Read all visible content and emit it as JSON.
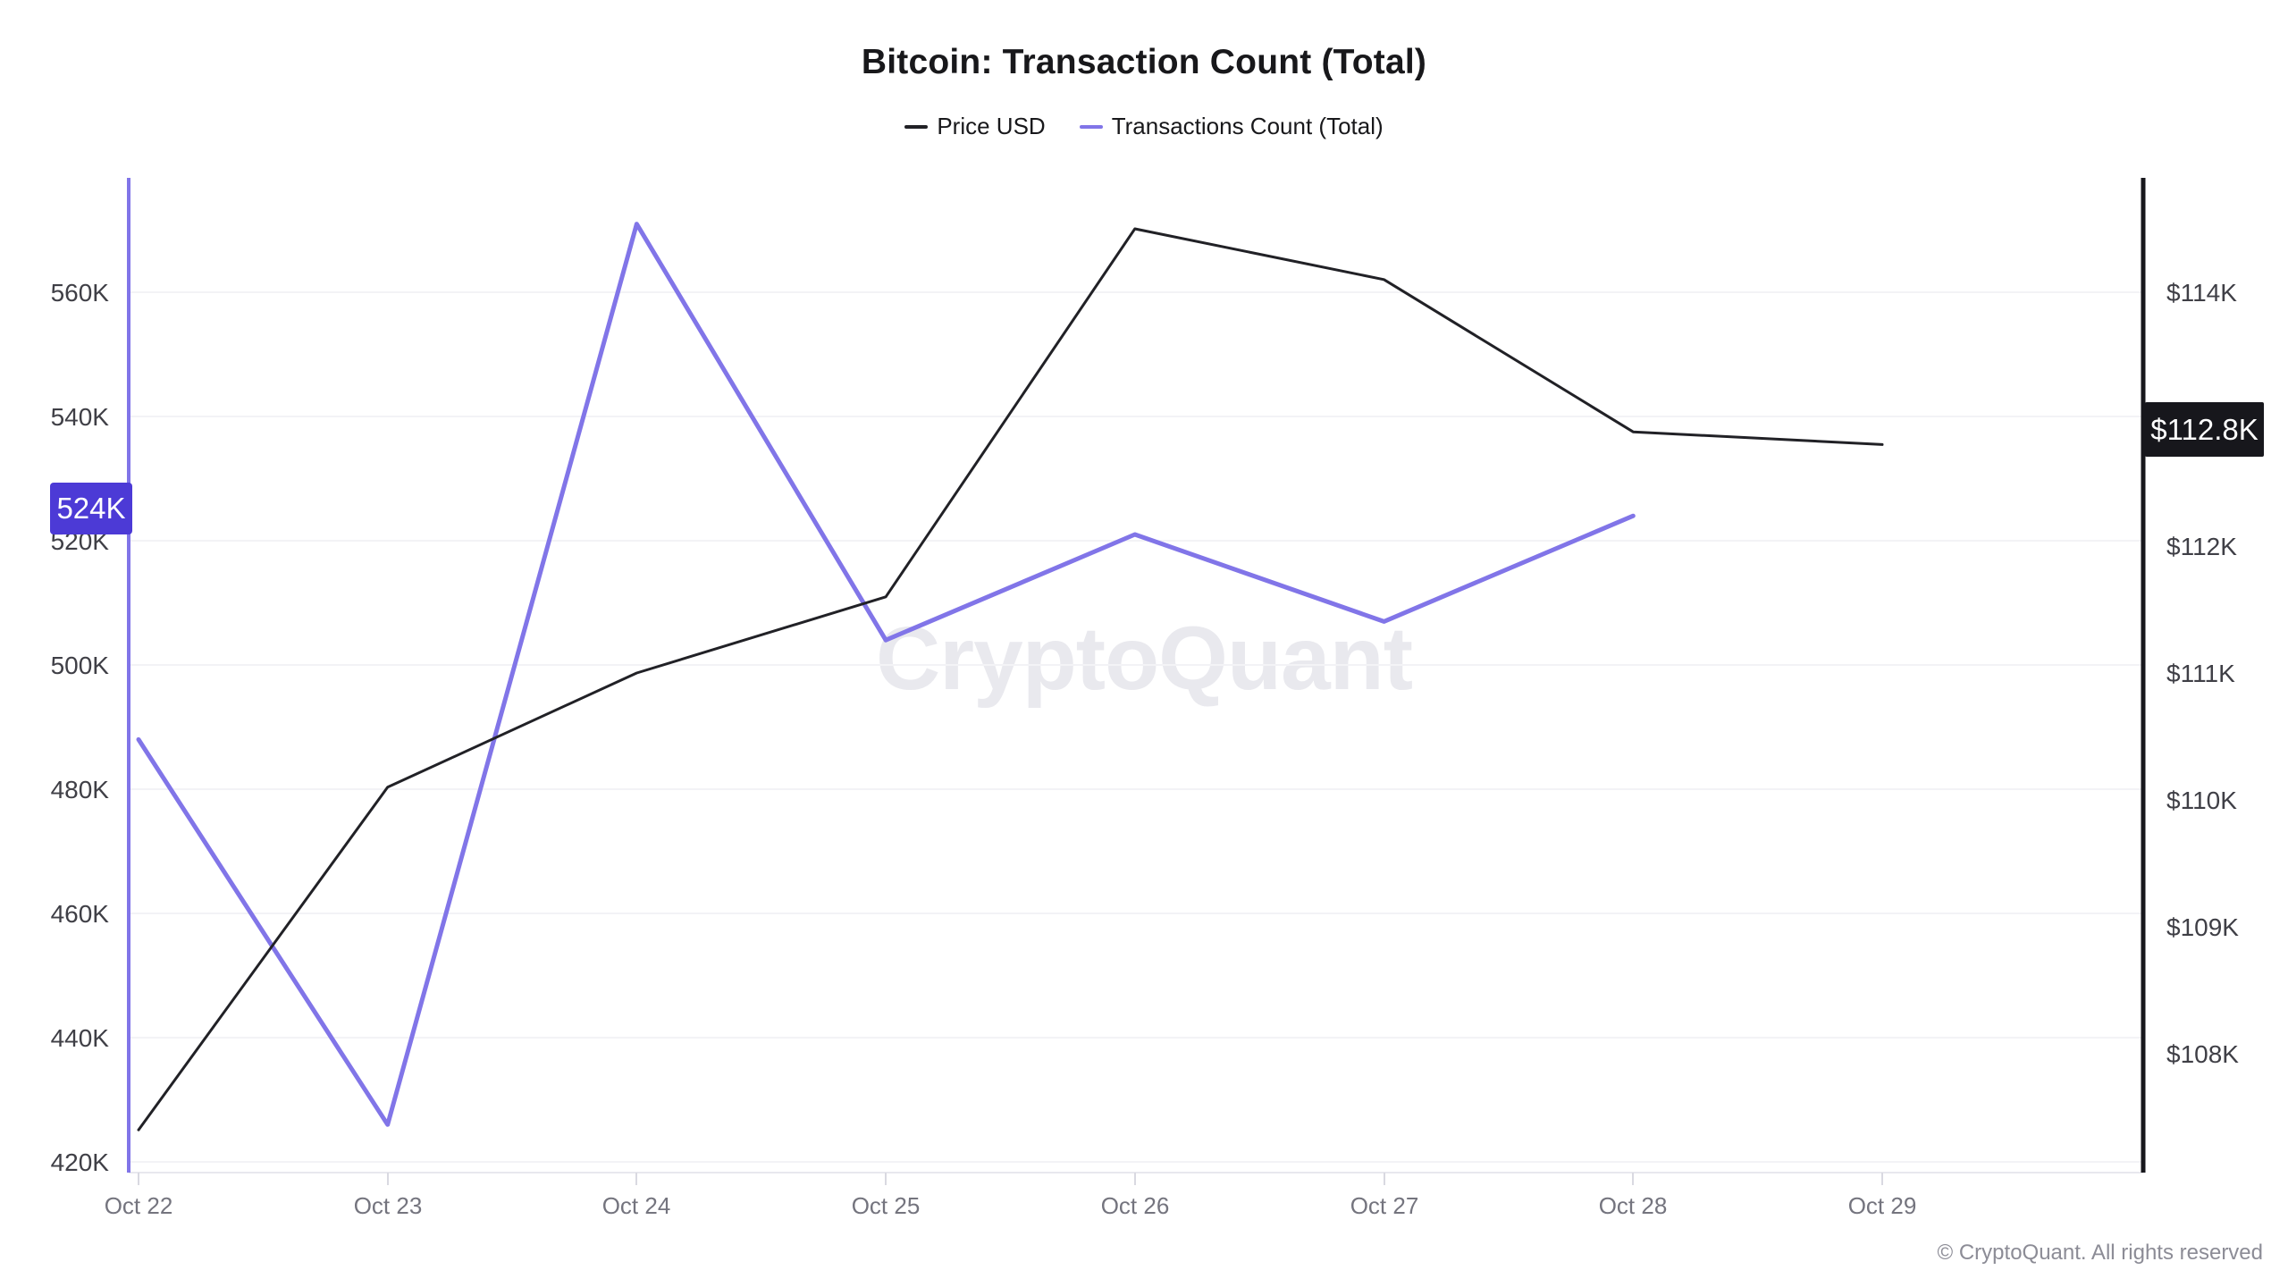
{
  "title": "Bitcoin: Transaction Count (Total)",
  "legend": [
    {
      "label": "Price USD",
      "color": "#212126"
    },
    {
      "label": "Transactions Count (Total)",
      "color": "#8175e8"
    }
  ],
  "watermark": "CryptoQuant",
  "copyright": "© CryptoQuant. All rights reserved",
  "badges": {
    "left": {
      "label": "524K",
      "bg": "#4c3ad6",
      "text_color": "#ffffff"
    },
    "right": {
      "label": "$112.8K",
      "bg": "#17171c",
      "text_color": "#ffffff"
    }
  },
  "colors": {
    "price_line": "#212126",
    "transactions_line": "#8175e8",
    "left_axis_line": "#8175e8",
    "right_axis_line": "#17171c",
    "gridline": "#f3f3f6",
    "x_axis_line": "#e8e8ee"
  },
  "chart_data": {
    "type": "line",
    "title": "Bitcoin: Transaction Count (Total)",
    "x": [
      "Oct 22",
      "Oct 23",
      "Oct 24",
      "Oct 25",
      "Oct 26",
      "Oct 27",
      "Oct 28",
      "Oct 29"
    ],
    "series": [
      {
        "name": "Price USD",
        "axis": "right",
        "unit": "USD thousands",
        "color": "#212126",
        "values": [
          107.4,
          110.1,
          111.0,
          111.6,
          114.5,
          114.1,
          112.9,
          112.8
        ]
      },
      {
        "name": "Transactions Count (Total)",
        "axis": "left",
        "unit": "thousands",
        "color": "#8175e8",
        "values": [
          488,
          426,
          571,
          504,
          521,
          507,
          524,
          null
        ]
      }
    ],
    "left_axis": {
      "ticks": [
        "560K",
        "540K",
        "520K",
        "500K",
        "480K",
        "460K",
        "440K",
        "420K"
      ],
      "tick_values": [
        560,
        540,
        520,
        500,
        480,
        460,
        440,
        420
      ],
      "ylim": [
        418.3,
        578.4
      ],
      "current_value_label": "524K"
    },
    "right_axis": {
      "ticks": [
        "$114K",
        "$112K",
        "$111K",
        "$110K",
        "$109K",
        "$108K"
      ],
      "tick_values": [
        114,
        112,
        111,
        110,
        109,
        108
      ],
      "ylim": [
        107.1,
        114.9
      ],
      "current_value_label": "$112.8K"
    },
    "grid": "horizontal",
    "legend_position": "top"
  }
}
